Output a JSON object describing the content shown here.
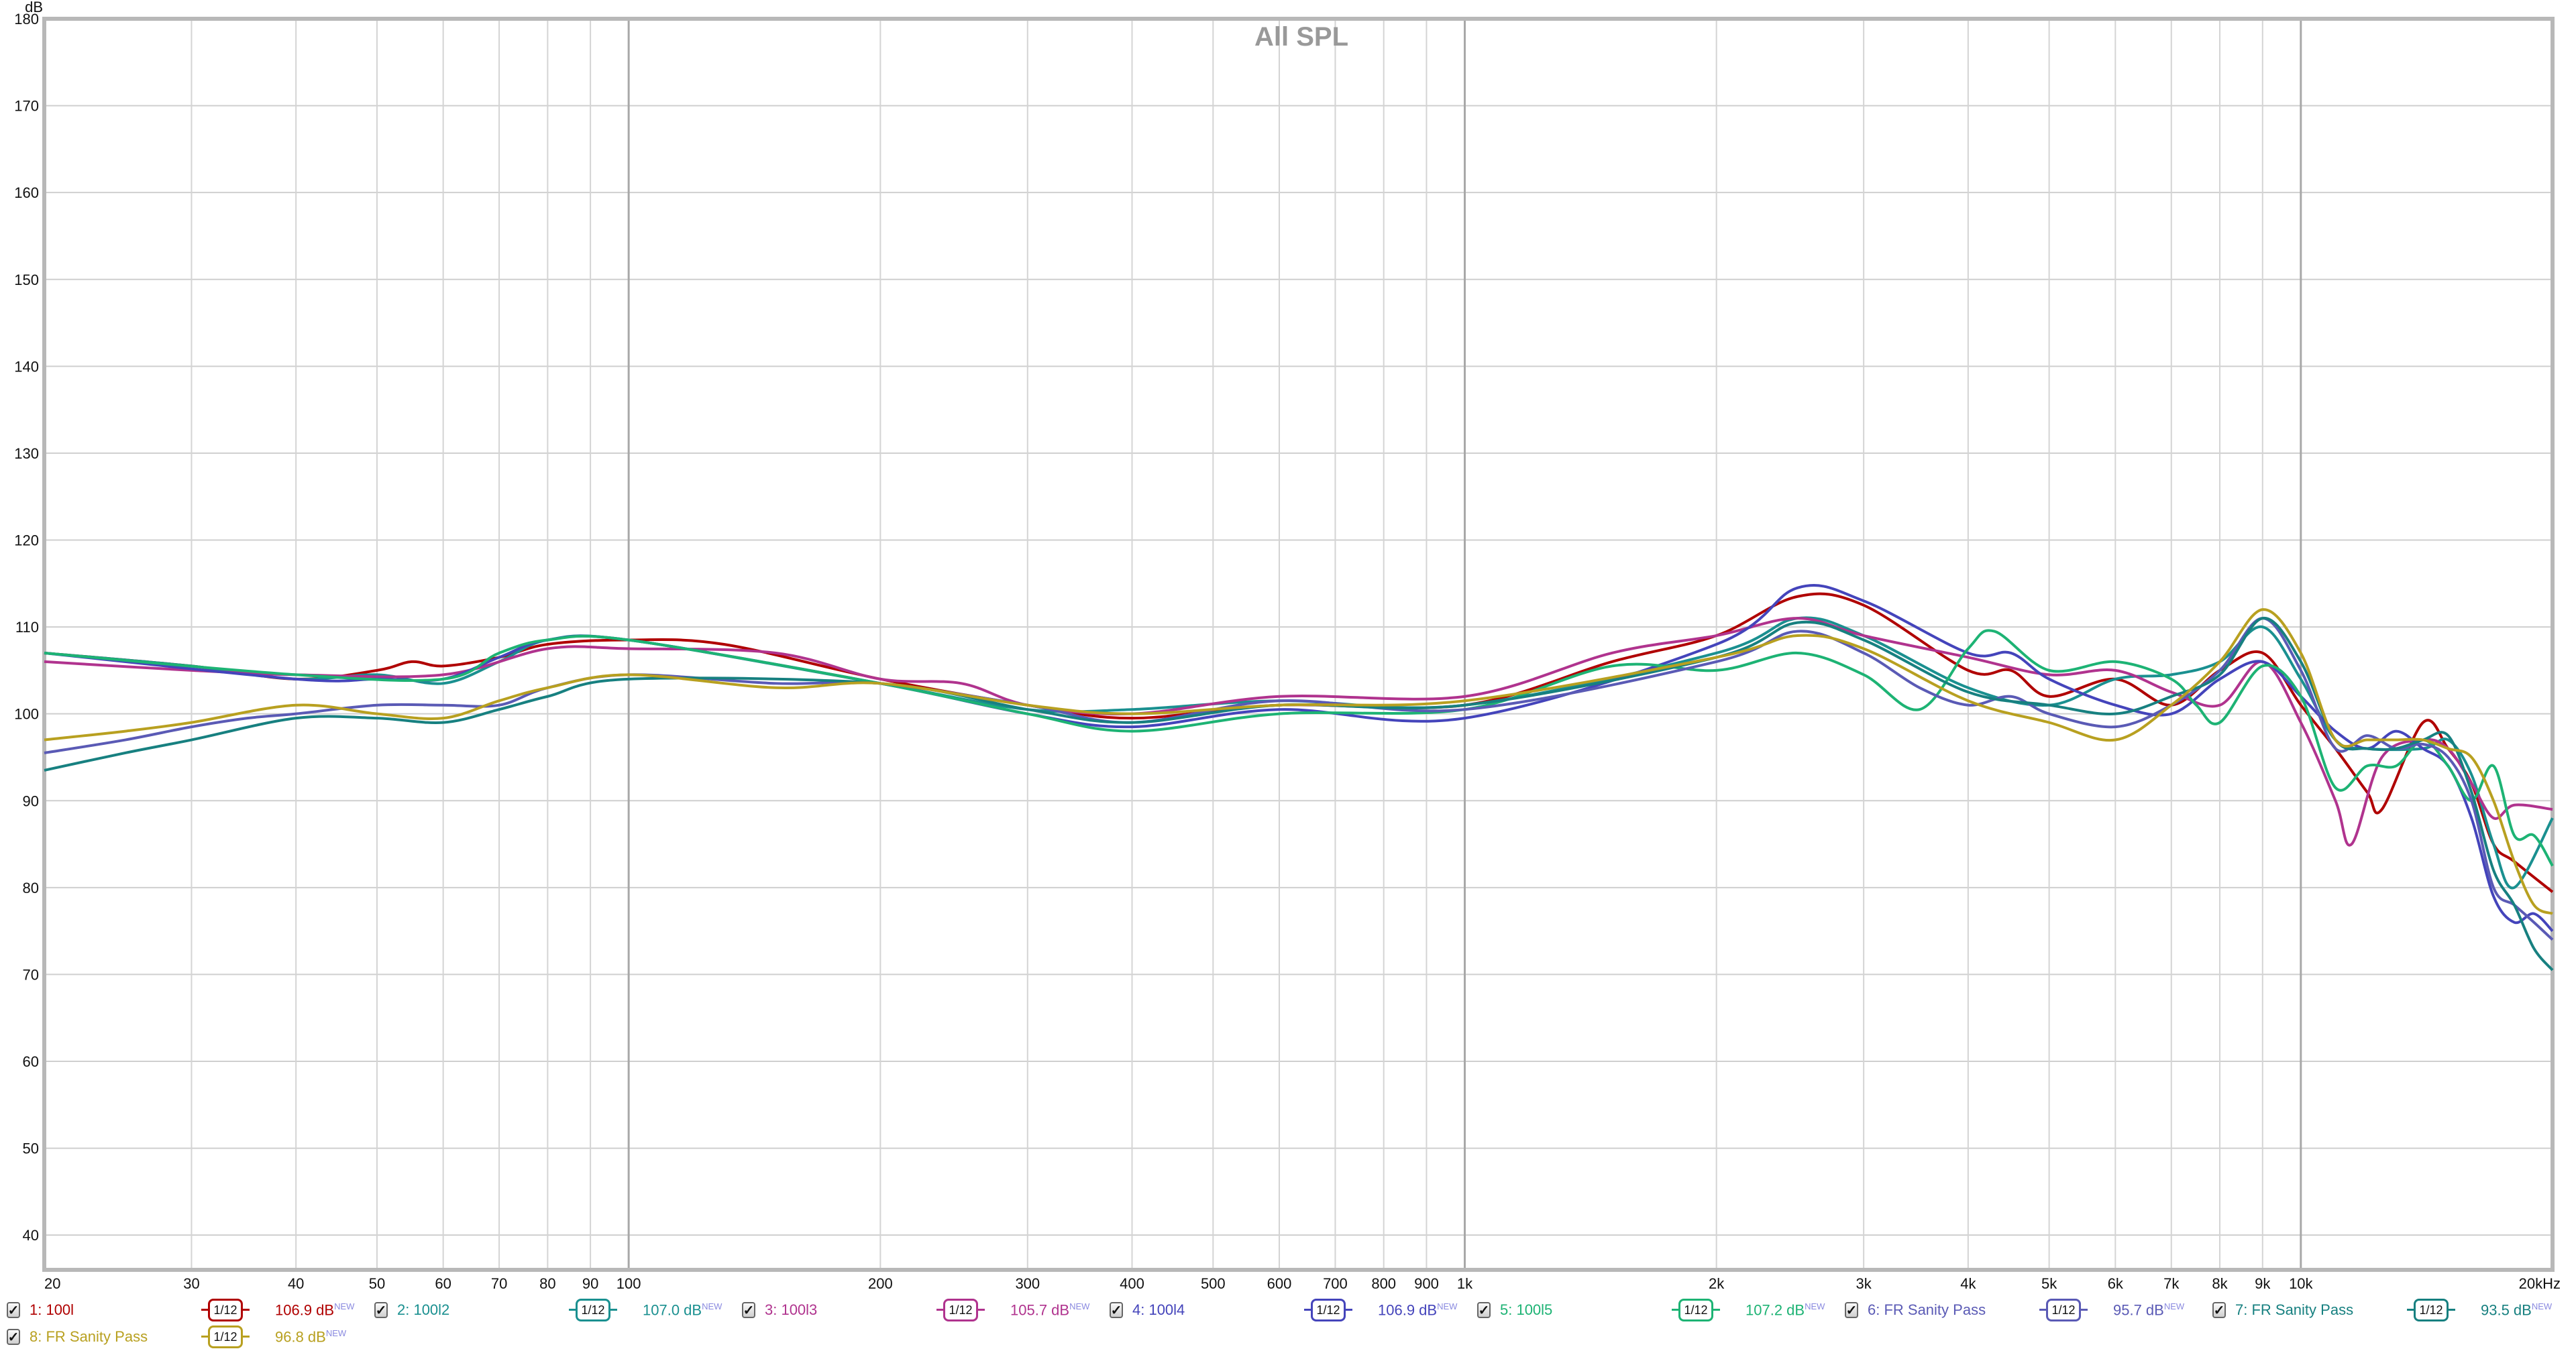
{
  "chart_data": {
    "type": "line",
    "title": "All SPL",
    "ylabel": "dB",
    "xscale": "log",
    "xlim": [
      20,
      20000
    ],
    "ylim": [
      36,
      180
    ],
    "grid": true,
    "yticks": [
      40,
      50,
      60,
      70,
      80,
      90,
      100,
      110,
      120,
      130,
      140,
      150,
      160,
      170,
      180
    ],
    "xticks": [
      {
        "v": 20,
        "label": "20"
      },
      {
        "v": 30,
        "label": "30"
      },
      {
        "v": 40,
        "label": "40"
      },
      {
        "v": 50,
        "label": "50"
      },
      {
        "v": 60,
        "label": "60"
      },
      {
        "v": 70,
        "label": "70"
      },
      {
        "v": 80,
        "label": "80"
      },
      {
        "v": 90,
        "label": "90"
      },
      {
        "v": 100,
        "label": "100"
      },
      {
        "v": 200,
        "label": "200"
      },
      {
        "v": 300,
        "label": "300"
      },
      {
        "v": 400,
        "label": "400"
      },
      {
        "v": 500,
        "label": "500"
      },
      {
        "v": 600,
        "label": "600"
      },
      {
        "v": 700,
        "label": "700"
      },
      {
        "v": 800,
        "label": "800"
      },
      {
        "v": 900,
        "label": "900"
      },
      {
        "v": 1000,
        "label": "1k"
      },
      {
        "v": 2000,
        "label": "2k"
      },
      {
        "v": 3000,
        "label": "3k"
      },
      {
        "v": 4000,
        "label": "4k"
      },
      {
        "v": 5000,
        "label": "5k"
      },
      {
        "v": 6000,
        "label": "6k"
      },
      {
        "v": 7000,
        "label": "7k"
      },
      {
        "v": 8000,
        "label": "8k"
      },
      {
        "v": 9000,
        "label": "9k"
      },
      {
        "v": 10000,
        "label": "10k"
      },
      {
        "v": 20000,
        "label": "20kHz"
      }
    ],
    "series": [
      {
        "name": "1: 100l",
        "color": "#b00000",
        "smoothing": "1/12",
        "level": "106.9 dB",
        "x": [
          20,
          30,
          40,
          50,
          55,
          60,
          70,
          80,
          100,
          130,
          200,
          300,
          400,
          600,
          1000,
          1500,
          2000,
          2500,
          3000,
          4000,
          4500,
          5000,
          6000,
          7000,
          8000,
          9000,
          10000,
          11000,
          12000,
          12500,
          14000,
          15000,
          16000,
          17000,
          18000,
          20000
        ],
        "y": [
          107,
          105.5,
          104,
          105,
          106,
          105.5,
          106.5,
          108,
          108.5,
          108,
          104,
          101,
          99.5,
          101,
          101,
          106,
          109,
          113.5,
          112.5,
          105,
          105,
          102,
          104,
          101,
          105,
          107,
          101,
          96,
          91,
          89,
          99,
          96,
          92,
          85,
          83,
          79.5
        ]
      },
      {
        "name": "2: 100l2",
        "color": "#1a9090",
        "smoothing": "1/12",
        "level": "107.0 dB",
        "x": [
          20,
          30,
          40,
          50,
          60,
          70,
          80,
          100,
          200,
          300,
          400,
          600,
          1000,
          2000,
          2500,
          3000,
          4000,
          5000,
          6000,
          7000,
          8000,
          9000,
          10000,
          11000,
          12000,
          14000,
          15000,
          16000,
          17000,
          18000,
          20000
        ],
        "y": [
          107,
          105.5,
          104,
          104.5,
          103.5,
          106,
          108.5,
          108.5,
          103.5,
          100.5,
          100.5,
          101.5,
          101,
          107,
          111,
          109,
          103,
          101,
          104,
          104.5,
          106,
          110,
          104,
          97,
          96,
          96,
          97,
          93,
          85,
          80,
          88
        ]
      },
      {
        "name": "3: 100l3",
        "color": "#b0338e",
        "smoothing": "1/12",
        "level": "105.7 dB",
        "x": [
          20,
          30,
          40,
          60,
          80,
          100,
          150,
          200,
          250,
          300,
          400,
          600,
          1000,
          1500,
          2000,
          2500,
          3000,
          4000,
          5000,
          6000,
          7000,
          8000,
          9000,
          10000,
          11000,
          11500,
          12500,
          14000,
          15000,
          16000,
          17000,
          18000,
          20000
        ],
        "y": [
          106,
          105,
          104.5,
          104.5,
          107.5,
          107.5,
          107,
          104,
          103.5,
          101,
          100,
          102,
          102,
          107,
          109,
          111,
          109,
          106.5,
          104.5,
          105,
          102.5,
          101,
          106,
          99,
          90,
          85,
          95,
          97,
          96,
          92,
          88,
          89.5,
          89
        ]
      },
      {
        "name": "4: 100l4",
        "color": "#4444bb",
        "smoothing": "1/12",
        "level": "106.9 dB",
        "x": [
          20,
          40,
          50,
          60,
          70,
          80,
          100,
          200,
          300,
          400,
          600,
          1000,
          2000,
          2500,
          3000,
          4000,
          4500,
          5000,
          6000,
          7000,
          8000,
          9000,
          10000,
          11000,
          12000,
          13000,
          14000,
          15000,
          16000,
          17000,
          18000,
          19000,
          20000
        ],
        "y": [
          107,
          104,
          104,
          104,
          106.5,
          108.5,
          108.5,
          103.5,
          100,
          98.5,
          100.5,
          99.5,
          108,
          114.5,
          113,
          107,
          107,
          104,
          101,
          100,
          104,
          106,
          102,
          98,
          96,
          98,
          96,
          94,
          88,
          79,
          76,
          77,
          75
        ]
      },
      {
        "name": "5: 100l5",
        "color": "#1db374",
        "smoothing": "1/12",
        "level": "107.2 dB",
        "x": [
          20,
          40,
          60,
          70,
          80,
          100,
          200,
          300,
          400,
          600,
          1000,
          1500,
          2000,
          2500,
          3000,
          3500,
          4000,
          4300,
          5000,
          6000,
          7000,
          7500,
          8000,
          9000,
          10000,
          11000,
          12000,
          13000,
          14000,
          15000,
          16000,
          17000,
          18000,
          19000,
          20000
        ],
        "y": [
          107,
          104.5,
          104,
          107,
          108.5,
          108.5,
          103.5,
          100,
          98,
          100,
          100.5,
          105.5,
          105,
          107,
          104.5,
          100.5,
          107.5,
          109.5,
          105,
          106,
          104,
          101,
          99,
          105.5,
          102,
          91.5,
          94,
          94,
          97,
          94,
          90,
          94,
          86,
          86,
          82.5
        ]
      },
      {
        "name": "6: FR Sanity Pass",
        "color": "#5a5ab5",
        "smoothing": "1/12",
        "level": "95.7 dB",
        "x": [
          20,
          25,
          30,
          35,
          40,
          50,
          60,
          70,
          80,
          100,
          150,
          200,
          300,
          400,
          600,
          1000,
          2000,
          2500,
          3000,
          3500,
          4000,
          4500,
          5000,
          6000,
          7000,
          8000,
          9000,
          10000,
          11000,
          12000,
          13000,
          14000,
          15000,
          16000,
          17000,
          18000,
          19000,
          20000
        ],
        "y": [
          95.5,
          97,
          98.5,
          99.5,
          100,
          101,
          101,
          101,
          103,
          104.5,
          103.5,
          103.5,
          101,
          99,
          101.5,
          100.5,
          106,
          109.5,
          107,
          103,
          101,
          102,
          100,
          98.5,
          101,
          105,
          111,
          105,
          96,
          97.5,
          96,
          96.5,
          95,
          90,
          80,
          78,
          76,
          74
        ]
      },
      {
        "name": "7: FR Sanity Pass",
        "color": "#178080",
        "smoothing": "1/12",
        "level": "93.5 dB",
        "x": [
          20,
          25,
          30,
          40,
          50,
          60,
          70,
          80,
          100,
          200,
          300,
          400,
          600,
          1000,
          2000,
          2500,
          3000,
          4000,
          5000,
          6000,
          7000,
          8000,
          9000,
          10000,
          11000,
          12000,
          13000,
          14000,
          15000,
          16000,
          17000,
          18000,
          19000,
          20000
        ],
        "y": [
          93.5,
          95.5,
          97,
          99.5,
          99.5,
          99,
          100.5,
          102,
          104,
          103.5,
          100.5,
          99,
          101,
          101,
          106.5,
          110.5,
          108.5,
          102.5,
          101,
          100,
          102,
          104.5,
          111,
          106,
          97,
          96,
          96,
          97,
          97.5,
          91,
          82,
          78,
          73,
          70.5
        ]
      },
      {
        "name": "8: FR Sanity Pass",
        "color": "#b8a020",
        "smoothing": "1/12",
        "level": "96.8 dB",
        "x": [
          20,
          25,
          30,
          40,
          50,
          60,
          70,
          80,
          100,
          150,
          200,
          300,
          400,
          600,
          1000,
          2000,
          2500,
          3000,
          4000,
          5000,
          6000,
          7000,
          8000,
          9000,
          10000,
          11000,
          12000,
          13000,
          14000,
          15000,
          16000,
          17000,
          18000,
          19000,
          20000
        ],
        "y": [
          97,
          98,
          99,
          101,
          100,
          99.5,
          101.5,
          103,
          104.5,
          103,
          103.5,
          101,
          100,
          101,
          101.5,
          106.5,
          109,
          107.5,
          101.5,
          99,
          97,
          101,
          106,
          112,
          107,
          97,
          97,
          97,
          97,
          96,
          95,
          90,
          83,
          78,
          77
        ]
      }
    ]
  },
  "legend": {
    "new_tag": "NEW",
    "check": "✓"
  }
}
